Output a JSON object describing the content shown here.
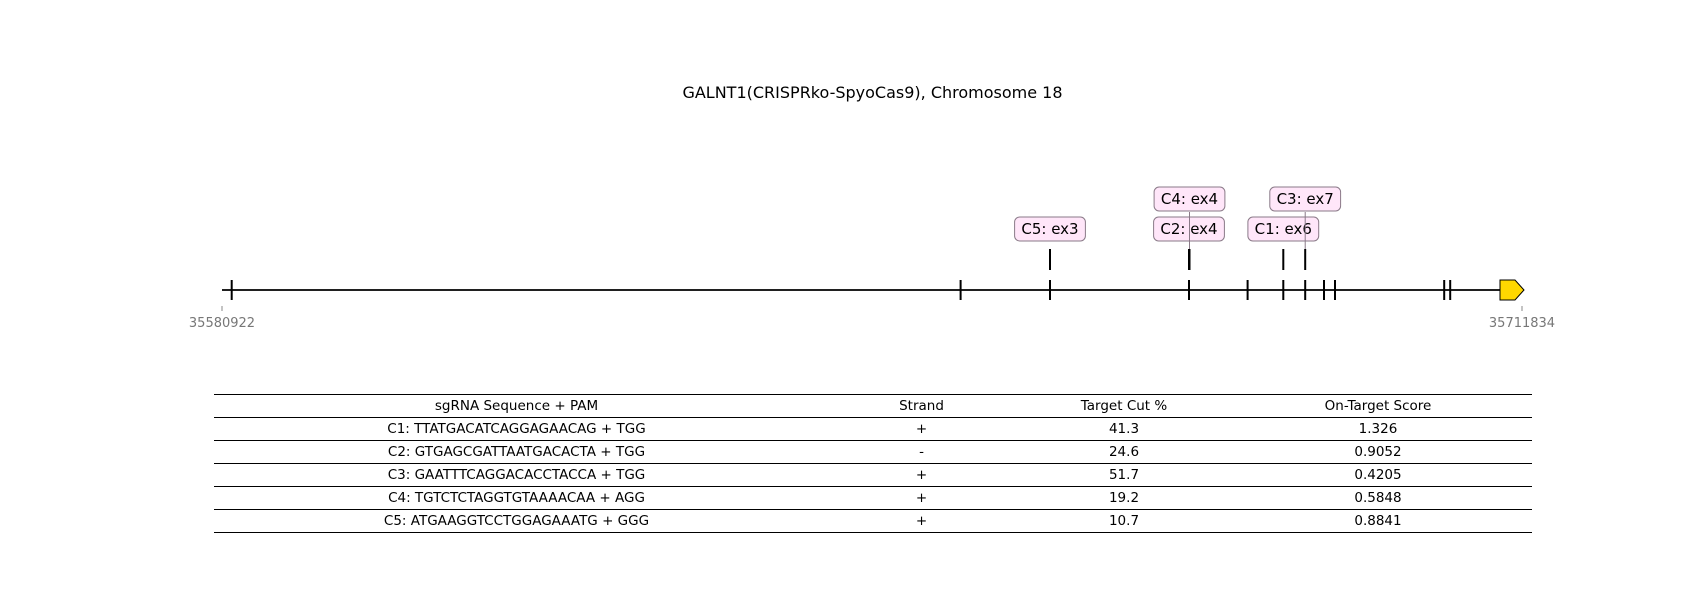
{
  "title": "GALNT1(CRISPRko-SpyoCas9), Chromosome 18",
  "gene_track": {
    "start_coord": "35580922",
    "end_coord": "35711834",
    "strand_arrow_color": "#FFD700",
    "label_box_fill": "#FFE6F9",
    "label_box_edge": "#8A7A88",
    "exon_positions": [
      35581900,
      35655300,
      35664300,
      35678300,
      35684200,
      35687800,
      35690000,
      35691900,
      35693000,
      35704000,
      35704600
    ],
    "cut_sites": [
      {
        "label": "C5: ex3",
        "position": 35664300,
        "row": 1
      },
      {
        "label": "C2: ex4",
        "position": 35678300,
        "row": 1
      },
      {
        "label": "C4: ex4",
        "position": 35678350,
        "row": 2
      },
      {
        "label": "C1: ex6",
        "position": 35687800,
        "row": 1
      },
      {
        "label": "C3: ex7",
        "position": 35690000,
        "row": 2
      }
    ]
  },
  "table": {
    "columns": [
      "sgRNA Sequence + PAM",
      "Strand",
      "Target Cut %",
      "On-Target Score"
    ],
    "rows": [
      [
        "C1: TTATGACATCAGGAGAACAG + TGG",
        "+",
        "41.3",
        "1.326"
      ],
      [
        "C2: GTGAGCGATTAATGACACTA + TGG",
        "-",
        "24.6",
        "0.9052"
      ],
      [
        "C3: GAATTTCAGGACACCTACCA + TGG",
        "+",
        "51.7",
        "0.4205"
      ],
      [
        "C4: TGTCTCTAGGTGTAAAACAA + AGG",
        "+",
        "19.2",
        "0.5848"
      ],
      [
        "C5: ATGAAGGTCCTGGAGAAATG + GGG",
        "+",
        "10.7",
        "0.8841"
      ]
    ]
  }
}
